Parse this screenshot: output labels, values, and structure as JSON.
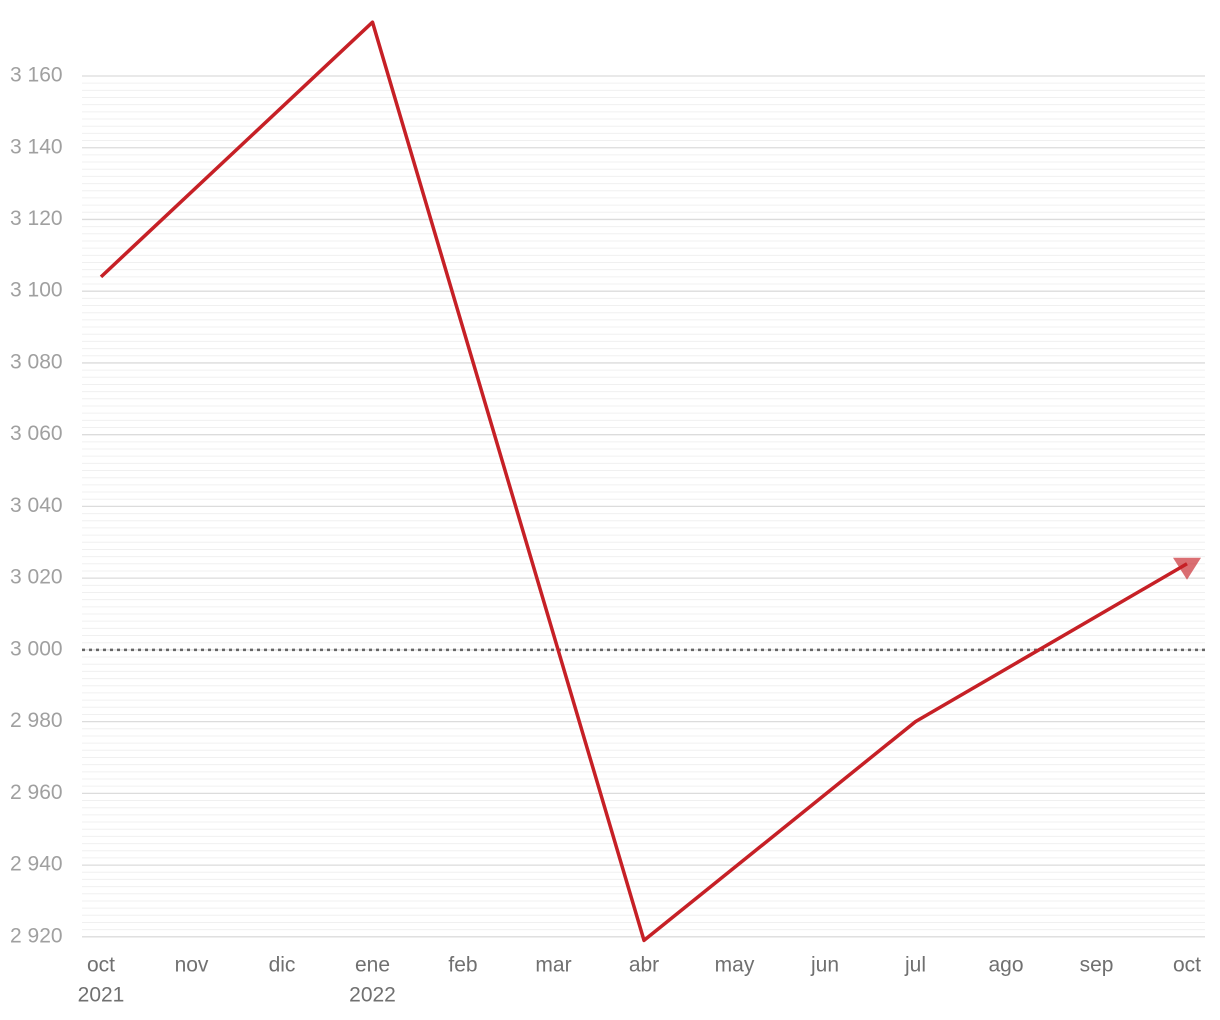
{
  "chart_data": {
    "type": "line",
    "x": [
      0,
      3,
      6,
      9,
      12
    ],
    "series": [
      {
        "color": "#c62026",
        "values": [
          3104,
          3175,
          2919,
          2980,
          3024
        ]
      }
    ],
    "xlim": [
      0,
      12
    ],
    "xticks": [
      {
        "value": 0,
        "label": "oct"
      },
      {
        "value": 1,
        "label": "nov"
      },
      {
        "value": 2,
        "label": "dic"
      },
      {
        "value": 3,
        "label": "ene"
      },
      {
        "value": 4,
        "label": "feb"
      },
      {
        "value": 5,
        "label": "mar"
      },
      {
        "value": 6,
        "label": "abr"
      },
      {
        "value": 7,
        "label": "may"
      },
      {
        "value": 8,
        "label": "jun"
      },
      {
        "value": 9,
        "label": "jul"
      },
      {
        "value": 10,
        "label": "ago"
      },
      {
        "value": 11,
        "label": "sep"
      },
      {
        "value": 12,
        "label": "oct"
      }
    ],
    "xtick_years": [
      {
        "value": 0,
        "label": "2021"
      },
      {
        "value": 3,
        "label": "2022"
      }
    ],
    "ylim": [
      2918,
      3177
    ],
    "yticks": [
      {
        "value": 2920,
        "label": "2 920"
      },
      {
        "value": 2940,
        "label": "2 940"
      },
      {
        "value": 2960,
        "label": "2 960"
      },
      {
        "value": 2980,
        "label": "2 980"
      },
      {
        "value": 3000,
        "label": "3 000"
      },
      {
        "value": 3020,
        "label": "3 020"
      },
      {
        "value": 3040,
        "label": "3 040"
      },
      {
        "value": 3060,
        "label": "3 060"
      },
      {
        "value": 3080,
        "label": "3 080"
      },
      {
        "value": 3100,
        "label": "3 100"
      },
      {
        "value": 3120,
        "label": "3 120"
      },
      {
        "value": 3140,
        "label": "3 140"
      },
      {
        "value": 3160,
        "label": "3 160"
      }
    ],
    "reference_line": 3000,
    "grid": true
  }
}
